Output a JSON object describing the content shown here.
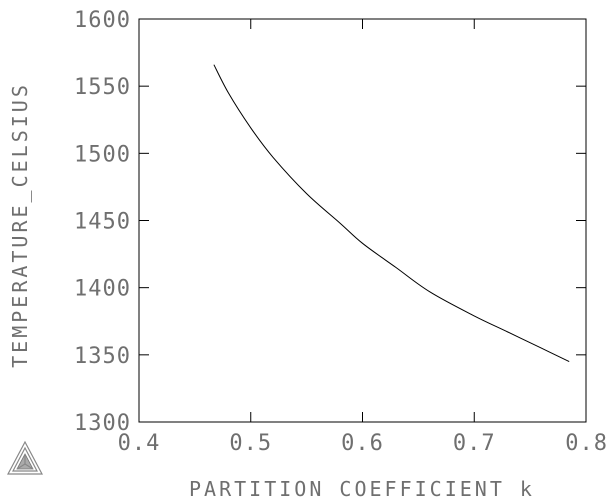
{
  "chart_data": {
    "type": "line",
    "xlabel": "PARTITION COEFFICIENT k",
    "ylabel": "TEMPERATURE_CELSIUS",
    "xlim": [
      0.4,
      0.8
    ],
    "ylim": [
      1300,
      1600
    ],
    "x_ticks": [
      "0.4",
      "0.5",
      "0.6",
      "0.7",
      "0.8"
    ],
    "y_ticks": [
      "1300",
      "1350",
      "1400",
      "1450",
      "1500",
      "1550",
      "1600"
    ],
    "grid": false,
    "series": [
      {
        "x": [
          0.467,
          0.48,
          0.5,
          0.52,
          0.55,
          0.58,
          0.6,
          0.63,
          0.66,
          0.7,
          0.73,
          0.76,
          0.785
        ],
        "y": [
          1566,
          1545,
          1519,
          1497,
          1470,
          1448,
          1433,
          1415,
          1397,
          1379,
          1367,
          1355,
          1345
        ]
      }
    ]
  },
  "logo": {
    "icon": "thermo-calc-triangle-icon"
  }
}
